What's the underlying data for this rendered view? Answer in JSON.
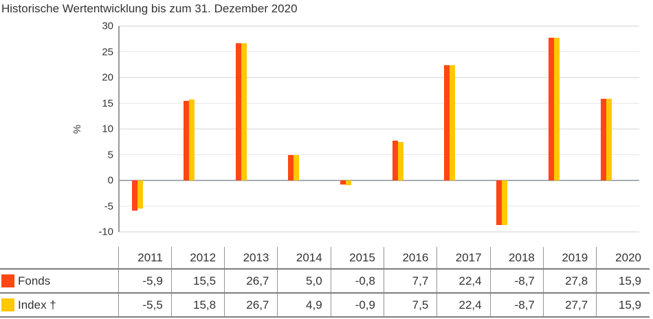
{
  "title": "Historische Wertentwicklung bis zum 31. Dezember 2020",
  "colors": {
    "fonds": "#FF4713",
    "index": "#FFC800",
    "gridline": "#e8e8e8",
    "zero_line": "#a6acb1",
    "axis_line": "#9a9a9a",
    "table_border": "#7d7d7d",
    "text": "#333333"
  },
  "chart_data": {
    "type": "bar",
    "title": "Historische Wertentwicklung bis zum 31. Dezember 2020",
    "categories": [
      "2011",
      "2012",
      "2013",
      "2014",
      "2015",
      "2016",
      "2017",
      "2018",
      "2019",
      "2020"
    ],
    "series": [
      {
        "name": "Fonds",
        "color": "#FF4713",
        "values": [
          -5.9,
          15.5,
          26.7,
          5.0,
          -0.8,
          7.7,
          22.4,
          -8.7,
          27.8,
          15.9
        ]
      },
      {
        "name": "Index †",
        "color": "#FFC800",
        "values": [
          -5.5,
          15.8,
          26.7,
          4.9,
          -0.9,
          7.5,
          22.4,
          -8.7,
          27.7,
          15.9
        ]
      }
    ],
    "xlabel": "",
    "ylabel": "%",
    "ylim": [
      -10,
      30
    ],
    "yticks": [
      30,
      25,
      20,
      15,
      10,
      5,
      0,
      -5,
      -10
    ],
    "grid": true,
    "legend_position": "table-left"
  },
  "table": {
    "corner_label": "",
    "columns": [
      "2011",
      "2012",
      "2013",
      "2014",
      "2015",
      "2016",
      "2017",
      "2018",
      "2019",
      "2020"
    ],
    "rows": [
      {
        "label": "Fonds",
        "swatch_color": "#FF4713",
        "values": [
          "-5,9",
          "15,5",
          "26,7",
          "5,0",
          "-0,8",
          "7,7",
          "22,4",
          "-8,7",
          "27,8",
          "15,9"
        ]
      },
      {
        "label": "Index †",
        "swatch_color": "#FFC800",
        "values": [
          "-5,5",
          "15,8",
          "26,7",
          "4,9",
          "-0,9",
          "7,5",
          "22,4",
          "-8,7",
          "27,7",
          "15,9"
        ]
      }
    ]
  }
}
